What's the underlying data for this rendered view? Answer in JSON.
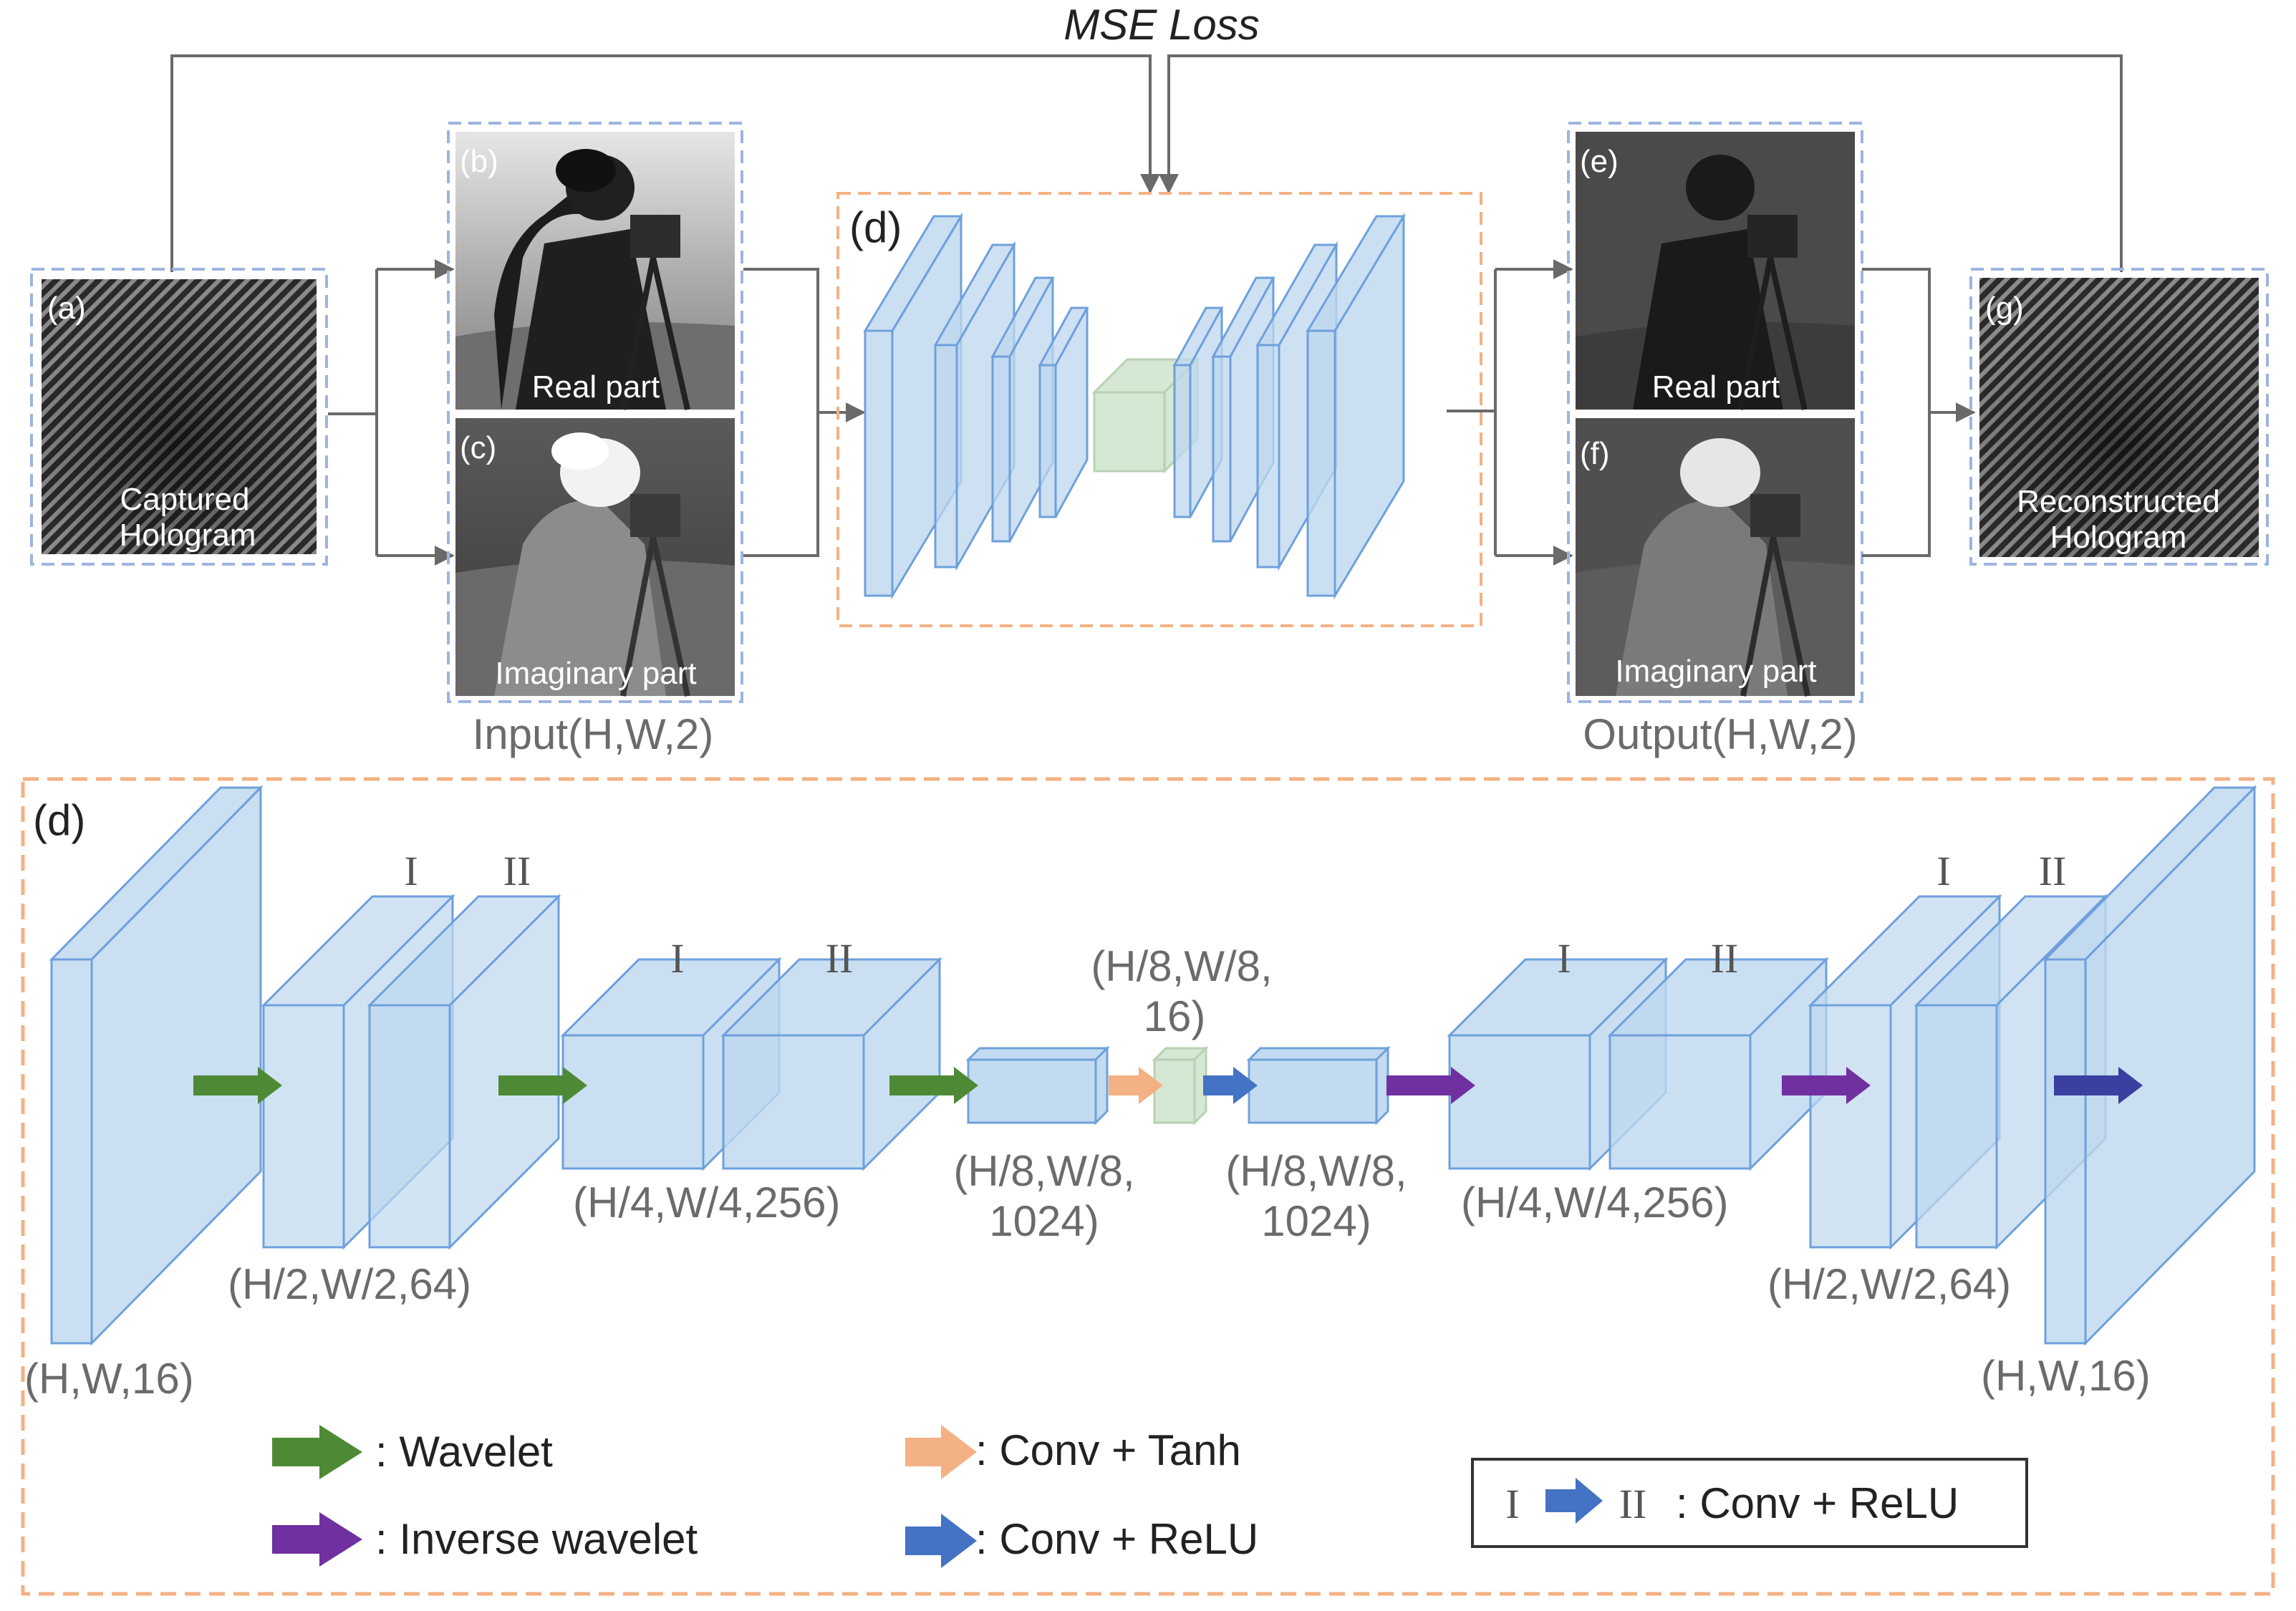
{
  "title": "MSE Loss",
  "top": {
    "captured": {
      "tag": "(a)",
      "line1": "Captured",
      "line2": "Hologram"
    },
    "input_real": {
      "tag": "(b)",
      "label": "Real part"
    },
    "input_imag": {
      "tag": "(c)",
      "label": "Imaginary  part"
    },
    "input_caption": "Input(H,W,2)",
    "network": {
      "tag": "(d)"
    },
    "output_real": {
      "tag": "(e)",
      "label": "Real part"
    },
    "output_imag": {
      "tag": "(f)",
      "label": "Imaginary  part"
    },
    "output_caption": "Output(H,W,2)",
    "reconstructed": {
      "tag": "(g)",
      "line1": "Reconstructed",
      "line2": "Hologram"
    }
  },
  "detail": {
    "tag": "(d)",
    "stage_labels": {
      "i": "I",
      "ii": "II"
    },
    "dims": {
      "in16": "(H,W,16)",
      "d64": "(H/2,W/2,64)",
      "d256": "(H/4,W/4,256)",
      "d1024_l1": "(H/8,W/8,",
      "d1024_l2": "1024)",
      "b16_l1": "(H/8,W/8,",
      "b16_l2": "16)",
      "u1024_l1": "(H/8,W/8,",
      "u1024_l2": "1024)",
      "u256": "(H/4,W/4,256)",
      "u64": "(H/2,W/2,64)",
      "out16": "(H,W,16)"
    },
    "legend": {
      "wavelet": ": Wavelet",
      "inverse": ": Inverse wavelet",
      "tanh": ": Conv + Tanh",
      "relu": ": Conv + ReLU",
      "box": ": Conv + ReLU"
    }
  },
  "colors": {
    "wavelet": "#4e8a36",
    "inverse": "#7030a0",
    "tanh": "#f4b183",
    "relu": "#4472c4",
    "block_fill": "#bdd7ee",
    "block_stroke": "#6fa0dc",
    "bottleneck": "#d5e8d4",
    "dashed_orange": "#f4b183",
    "dashed_blue": "#9db4e0"
  }
}
